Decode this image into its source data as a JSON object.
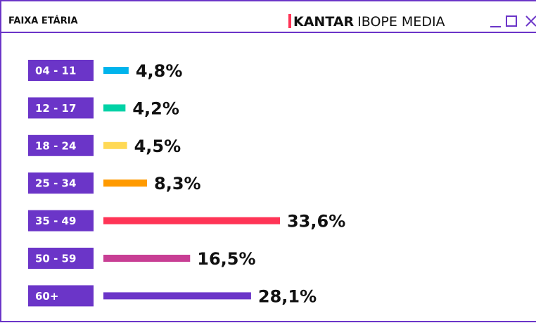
{
  "chart_data": {
    "type": "bar",
    "title": "FAIXA ETÁRIA",
    "brand": "KANTAR",
    "brand_suffix": "IBOPE MEDIA",
    "categories": [
      "04 - 11",
      "12 - 17",
      "18 - 24",
      "25 - 34",
      "35 - 49",
      "50 - 59",
      "60+"
    ],
    "values": [
      4.8,
      4.2,
      4.5,
      8.3,
      33.6,
      16.5,
      28.1
    ],
    "value_labels": [
      "4,8%",
      "4,2%",
      "4,5%",
      "8,3%",
      "33,6%",
      "16,5%",
      "28,1%"
    ],
    "colors": [
      "#00b4ec",
      "#00d2a6",
      "#ffd955",
      "#ff9a00",
      "#ff3456",
      "#c83e94",
      "#6b35c8"
    ],
    "label_box_color": "#6b35c8"
  }
}
